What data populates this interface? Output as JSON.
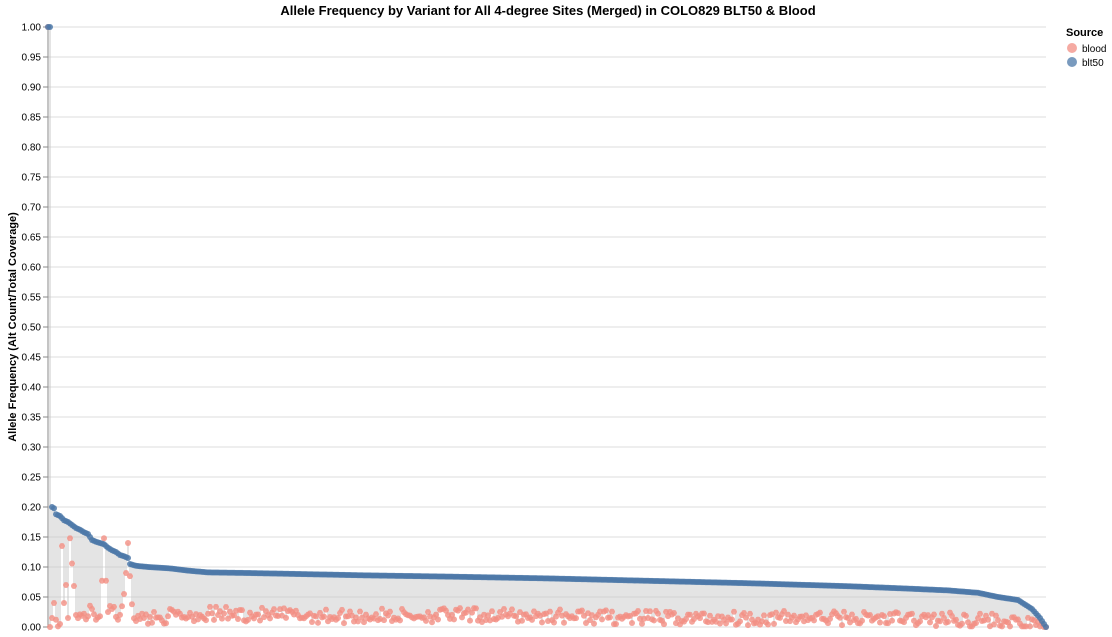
{
  "chart_data": {
    "type": "scatter",
    "title": "Allele Frequency by Variant for All 4-degree Sites (Merged) in COLO829 BLT50 & Blood",
    "xlabel": "",
    "ylabel": "Allele Frequency (Alt Count/Total Coverage)",
    "ylim": [
      0,
      1
    ],
    "y_ticks": [
      "0.00",
      "0.05",
      "0.10",
      "0.15",
      "0.20",
      "0.25",
      "0.30",
      "0.35",
      "0.40",
      "0.45",
      "0.50",
      "0.55",
      "0.60",
      "0.65",
      "0.70",
      "0.75",
      "0.80",
      "0.85",
      "0.90",
      "0.95",
      "1.00"
    ],
    "grid": true,
    "legend": {
      "title": "Source",
      "placement": "top-right"
    },
    "num_variants": 500,
    "series": [
      {
        "name": "blood",
        "color": "#f28e83",
        "anchor_points": [
          [
            0,
            1.0
          ],
          [
            1,
            0.0
          ],
          [
            2,
            0.015
          ],
          [
            3,
            0.04
          ],
          [
            4,
            0.012
          ],
          [
            6,
            0.005
          ],
          [
            7,
            0.135
          ],
          [
            8,
            0.04
          ],
          [
            9,
            0.07
          ],
          [
            10,
            0.015
          ],
          [
            11,
            0.148
          ],
          [
            14,
            0.02
          ],
          [
            16,
            0.021
          ],
          [
            18,
            0.022
          ],
          [
            20,
            0.018
          ],
          [
            22,
            0.03
          ],
          [
            24,
            0.012
          ],
          [
            26,
            0.018
          ],
          [
            28,
            0.148
          ],
          [
            30,
            0.025
          ],
          [
            32,
            0.03
          ],
          [
            35,
            0.012
          ],
          [
            38,
            0.055
          ],
          [
            40,
            0.14
          ],
          [
            42,
            0.038
          ],
          [
            44,
            0.01
          ],
          [
            48,
            0.015
          ],
          [
            60,
            0.018
          ],
          [
            80,
            0.022
          ],
          [
            110,
            0.02
          ],
          [
            150,
            0.018
          ],
          [
            200,
            0.02
          ],
          [
            260,
            0.018
          ],
          [
            300,
            0.015
          ],
          [
            400,
            0.015
          ],
          [
            470,
            0.012
          ],
          [
            498,
            0.0
          ],
          [
            499,
            0.0
          ]
        ],
        "noise_amplitude": 0.012
      },
      {
        "name": "blt50",
        "color": "#4c78a8",
        "anchor_points": [
          [
            0,
            1.0
          ],
          [
            1,
            1.0
          ],
          [
            2,
            0.2
          ],
          [
            3,
            0.198
          ],
          [
            4,
            0.188
          ],
          [
            6,
            0.185
          ],
          [
            8,
            0.178
          ],
          [
            10,
            0.175
          ],
          [
            12,
            0.17
          ],
          [
            14,
            0.165
          ],
          [
            16,
            0.162
          ],
          [
            18,
            0.158
          ],
          [
            20,
            0.155
          ],
          [
            22,
            0.145
          ],
          [
            24,
            0.142
          ],
          [
            26,
            0.14
          ],
          [
            28,
            0.138
          ],
          [
            30,
            0.132
          ],
          [
            32,
            0.128
          ],
          [
            34,
            0.125
          ],
          [
            36,
            0.12
          ],
          [
            38,
            0.118
          ],
          [
            40,
            0.115
          ],
          [
            41,
            0.105
          ],
          [
            44,
            0.102
          ],
          [
            50,
            0.1
          ],
          [
            60,
            0.098
          ],
          [
            70,
            0.094
          ],
          [
            80,
            0.091
          ],
          [
            100,
            0.09
          ],
          [
            130,
            0.088
          ],
          [
            160,
            0.086
          ],
          [
            200,
            0.084
          ],
          [
            250,
            0.081
          ],
          [
            300,
            0.077
          ],
          [
            350,
            0.073
          ],
          [
            400,
            0.068
          ],
          [
            430,
            0.064
          ],
          [
            450,
            0.061
          ],
          [
            465,
            0.057
          ],
          [
            475,
            0.05
          ],
          [
            485,
            0.045
          ],
          [
            492,
            0.03
          ],
          [
            496,
            0.015
          ],
          [
            498,
            0.005
          ],
          [
            499,
            0.0
          ]
        ]
      }
    ]
  }
}
